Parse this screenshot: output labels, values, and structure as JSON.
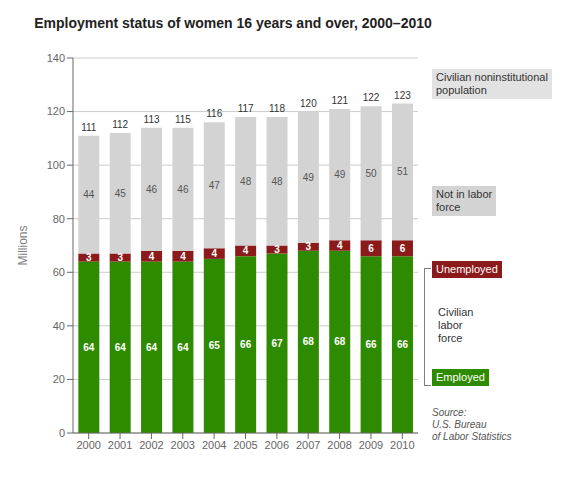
{
  "chart_data": {
    "type": "bar",
    "stacked": true,
    "title": "Employment status of women 16 years and over, 2000–2010",
    "ylabel": "Millions",
    "categories": [
      "2000",
      "2001",
      "2002",
      "2003",
      "2004",
      "2005",
      "2006",
      "2007",
      "2008",
      "2009",
      "2010"
    ],
    "series": [
      {
        "name": "Employed",
        "color": "#2e8b00",
        "values": [
          64,
          64,
          64,
          64,
          65,
          66,
          67,
          68,
          68,
          66,
          66
        ]
      },
      {
        "name": "Unemployed",
        "color": "#8b1a1a",
        "values": [
          3,
          3,
          4,
          4,
          4,
          4,
          3,
          3,
          4,
          6,
          6
        ]
      },
      {
        "name": "Not in labor\nforce",
        "color": "#d3d3d3",
        "values": [
          44,
          45,
          46,
          46,
          47,
          48,
          48,
          49,
          49,
          50,
          51
        ]
      }
    ],
    "totals": [
      111,
      112,
      113,
      115,
      116,
      117,
      118,
      120,
      121,
      122,
      123
    ],
    "ylim": [
      0,
      140
    ],
    "yticks": [
      0,
      20,
      40,
      60,
      80,
      100,
      120,
      140
    ],
    "grid": true,
    "data_labels": true,
    "legend": "right",
    "annotations": [
      "Civilian noninstitutional\npopulation",
      "Civilian\nlabor\nforce",
      "Source:\nU.S. Bureau\nof Labor Statistics"
    ]
  }
}
